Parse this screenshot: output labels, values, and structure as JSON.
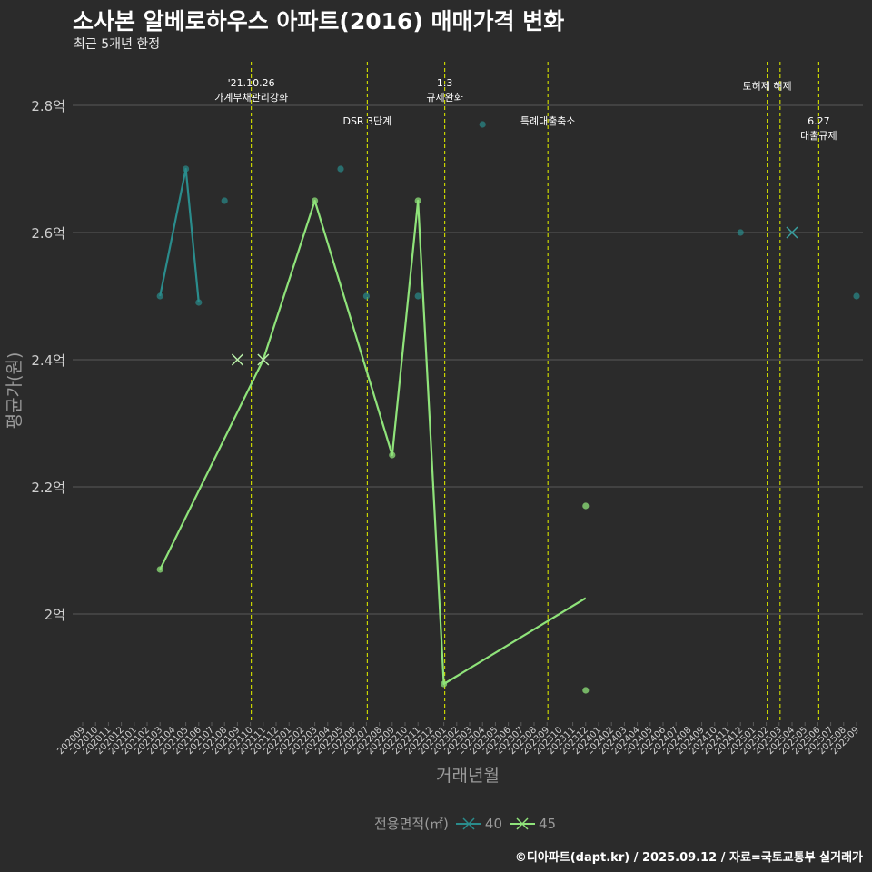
{
  "title": "소사본 알베로하우스 아파트(2016) 매매가격 변화",
  "subtitle": "최근 5개년 한정",
  "caption": "©디아파트(dapt.kr) / 2025.09.12 / 자료=국토교통부 실거래가",
  "chart_data": {
    "type": "line",
    "xlabel": "거래년월",
    "ylabel": "평균가(원)",
    "ylim": [
      1.83,
      2.88
    ],
    "y_ticks": [
      {
        "value": 2.0,
        "label": "2억"
      },
      {
        "value": 2.2,
        "label": "2.2억"
      },
      {
        "value": 2.4,
        "label": "2.4억"
      },
      {
        "value": 2.6,
        "label": "2.6억"
      },
      {
        "value": 2.8,
        "label": "2.8억"
      }
    ],
    "categories": [
      "202009",
      "202010",
      "202011",
      "202012",
      "202101",
      "202102",
      "202103",
      "202104",
      "202105",
      "202106",
      "202107",
      "202108",
      "202109",
      "202110",
      "202111",
      "202112",
      "202201",
      "202202",
      "202203",
      "202204",
      "202205",
      "202206",
      "202207",
      "202208",
      "202209",
      "202210",
      "202211",
      "202212",
      "202301",
      "202302",
      "202303",
      "202304",
      "202305",
      "202306",
      "202307",
      "202308",
      "202309",
      "202310",
      "202311",
      "202312",
      "202401",
      "202402",
      "202403",
      "202404",
      "202405",
      "202406",
      "202407",
      "202408",
      "202409",
      "202410",
      "202411",
      "202412",
      "202501",
      "202502",
      "202503",
      "202504",
      "202505",
      "202506",
      "202507",
      "202508",
      "202509"
    ],
    "legend_title": "전용면적(㎡)",
    "series": [
      {
        "name": "40",
        "color": "#2a8c8c",
        "line": [
          [
            "202103",
            2.5
          ],
          [
            "202105",
            2.7
          ],
          [
            "202106",
            2.49
          ]
        ],
        "points": [
          [
            "202103",
            2.5
          ],
          [
            "202105",
            2.7
          ],
          [
            "202106",
            2.49
          ],
          [
            "202108",
            2.65
          ],
          [
            "202205",
            2.7
          ],
          [
            "202207",
            2.5
          ],
          [
            "202211",
            2.5
          ],
          [
            "202304",
            2.77
          ],
          [
            "202412",
            2.6
          ],
          [
            "202509",
            2.5
          ]
        ],
        "x_markers": [
          [
            "202504",
            2.6
          ]
        ]
      },
      {
        "name": "45",
        "color": "#8fe37a",
        "line": [
          [
            "202103",
            2.07
          ],
          [
            "202111",
            2.4
          ],
          [
            "202203",
            2.65
          ],
          [
            "202209",
            2.25
          ],
          [
            "202211",
            2.65
          ],
          [
            "202301",
            1.89
          ],
          [
            "202312",
            2.025
          ]
        ],
        "points": [
          [
            "202103",
            2.07
          ],
          [
            "202203",
            2.65
          ],
          [
            "202209",
            2.25
          ],
          [
            "202211",
            2.65
          ],
          [
            "202301",
            1.89
          ],
          [
            "202312",
            2.17
          ],
          [
            "202312",
            1.88
          ]
        ],
        "x_markers": [
          [
            "202109",
            2.4
          ],
          [
            "202111",
            2.4
          ]
        ]
      }
    ],
    "annotations": [
      {
        "month": "202110",
        "lines": [
          "'21.10.26",
          "가계부채관리강화"
        ],
        "y": 2.83
      },
      {
        "month": "202207",
        "lines": [
          "DSR 3단계"
        ],
        "y": 2.77
      },
      {
        "month": "202301",
        "lines": [
          "1.3",
          "규제완화"
        ],
        "y": 2.83
      },
      {
        "month": "202309",
        "lines": [
          "특례대출축소"
        ],
        "y": 2.77
      },
      {
        "month": "202502",
        "lines": [
          "토허제 해제"
        ],
        "y": 2.825
      },
      {
        "month": "202503",
        "lines": [],
        "y": 2.8
      },
      {
        "month": "202506",
        "lines": [
          "6.27",
          "대출규제"
        ],
        "y": 2.77
      }
    ],
    "grid": true,
    "legend_position": "bottom"
  },
  "colors": {
    "background": "#2b2b2b",
    "grid": "#5a5a5a",
    "annotation_line": "#c8d400",
    "axis_text": "#cfcfcf",
    "axis_title": "#9a9a9a"
  }
}
